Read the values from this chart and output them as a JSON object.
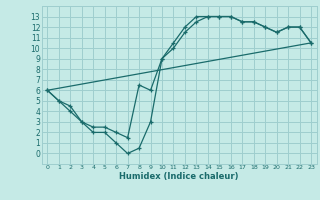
{
  "xlabel": "Humidex (Indice chaleur)",
  "bg_color": "#c5eae6",
  "grid_color": "#9ecece",
  "line_color": "#1a6b6b",
  "line1_x": [
    0,
    1,
    2,
    3,
    4,
    5,
    6,
    7,
    8,
    9,
    10,
    11,
    12,
    13,
    14,
    15,
    16,
    17,
    18,
    19,
    20,
    21,
    22,
    23
  ],
  "line1_y": [
    6,
    5,
    4,
    3,
    2,
    2,
    1,
    0,
    0.5,
    3,
    9,
    10,
    11.5,
    12.5,
    13,
    13,
    13,
    12.5,
    12.5,
    12,
    11.5,
    12,
    12,
    10.5
  ],
  "line2_x": [
    0,
    1,
    2,
    3,
    4,
    5,
    6,
    7,
    8,
    9,
    10,
    11,
    12,
    13,
    14,
    15,
    16,
    17,
    18,
    19,
    20,
    21,
    22,
    23
  ],
  "line2_y": [
    6,
    5,
    4.5,
    3,
    2.5,
    2.5,
    2,
    1.5,
    6.5,
    6,
    9,
    10.5,
    12,
    13,
    13,
    13,
    13,
    12.5,
    12.5,
    12,
    11.5,
    12,
    12,
    10.5
  ],
  "line3_x": [
    0,
    23
  ],
  "line3_y": [
    6,
    10.5
  ],
  "xlim": [
    -0.5,
    23.5
  ],
  "ylim": [
    -1,
    14
  ],
  "xticks": [
    0,
    1,
    2,
    3,
    4,
    5,
    6,
    7,
    8,
    9,
    10,
    11,
    12,
    13,
    14,
    15,
    16,
    17,
    18,
    19,
    20,
    21,
    22,
    23
  ],
  "yticks": [
    0,
    1,
    2,
    3,
    4,
    5,
    6,
    7,
    8,
    9,
    10,
    11,
    12,
    13
  ]
}
